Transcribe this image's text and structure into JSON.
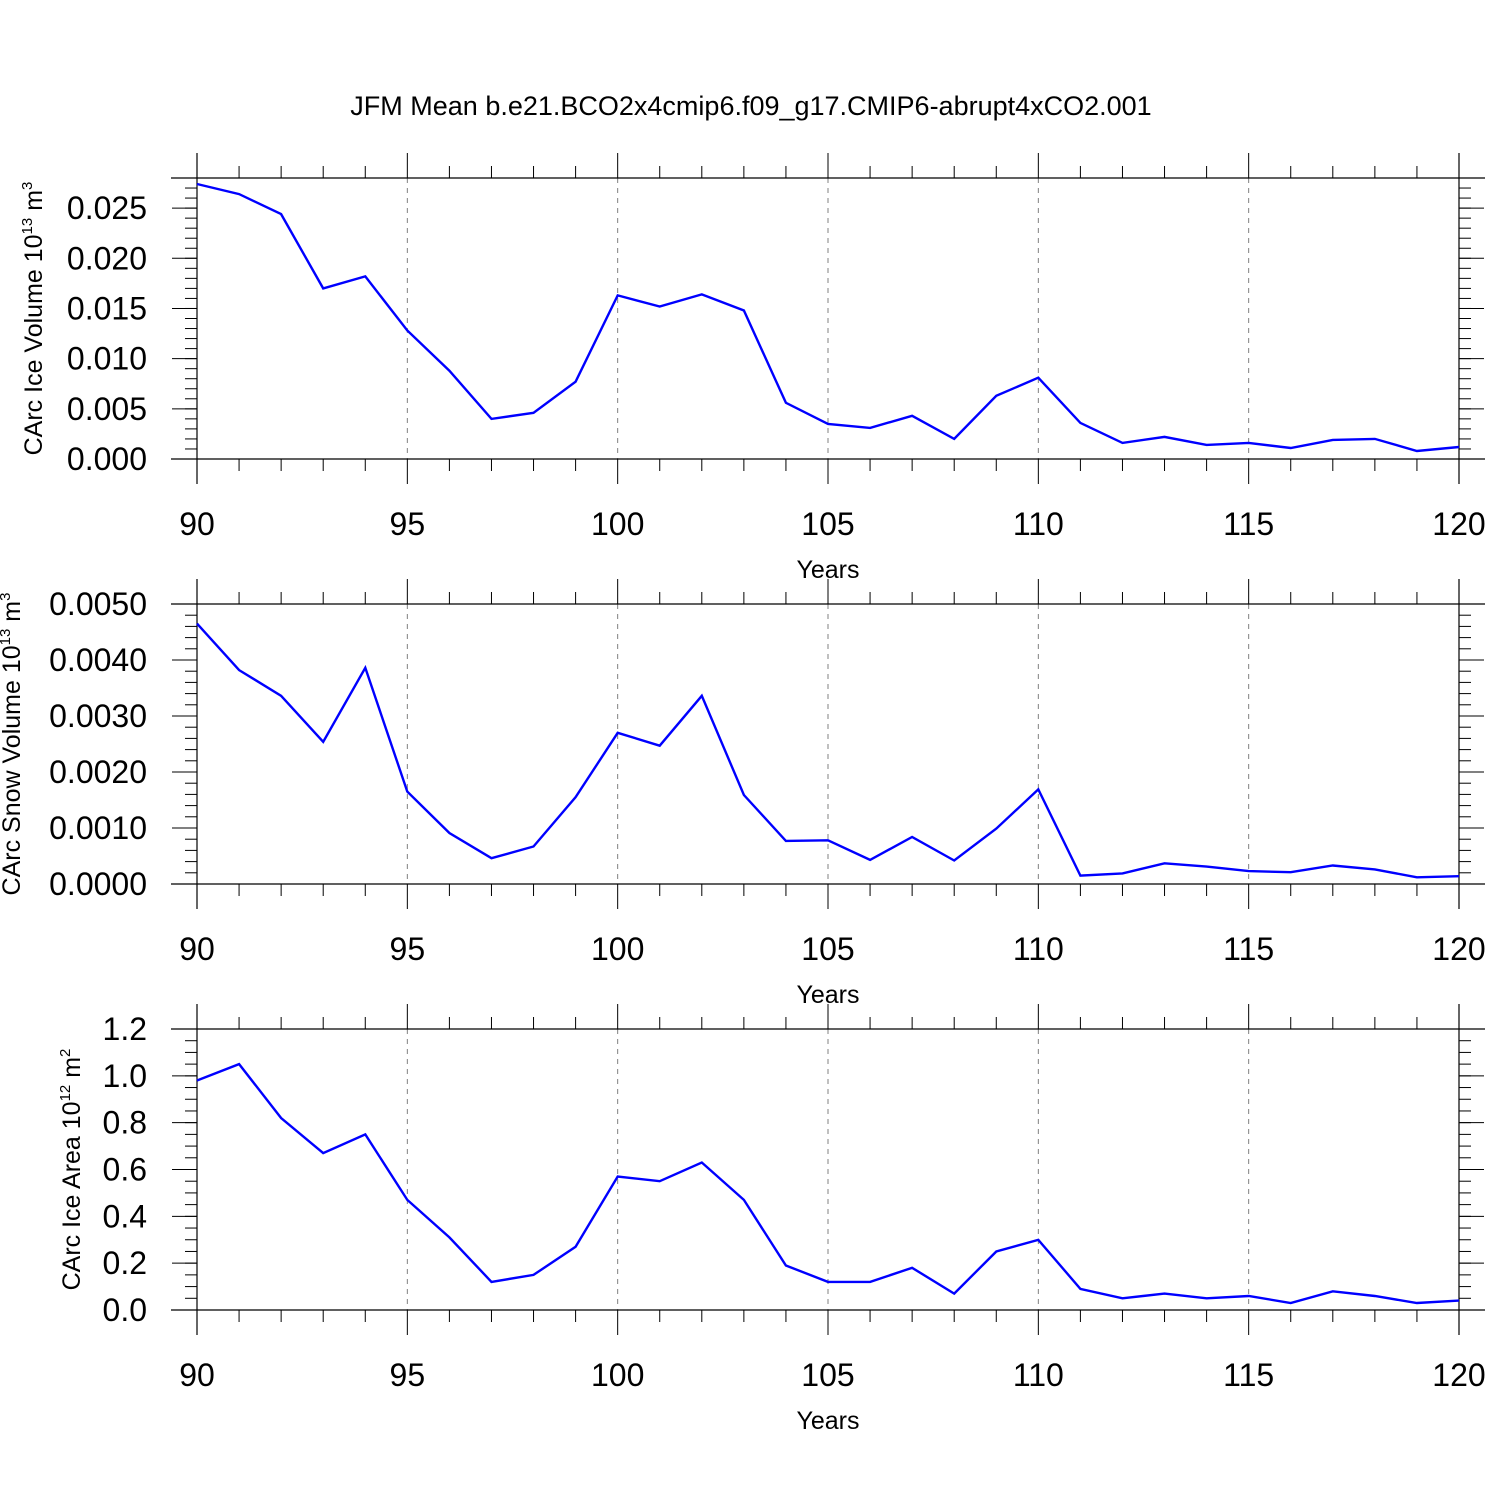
{
  "title": "JFM Mean b.e21.BCO2x4cmip6.f09_g17.CMIP6-abrupt4xCO2.001",
  "colors": {
    "line": "#0000ff",
    "axis": "#000000",
    "grid": "#808080"
  },
  "chart_data": [
    {
      "type": "line",
      "ylabel": {
        "text": "CArc Ice Volume 10",
        "sup1": "13",
        "mid": " m",
        "sup2": "3"
      },
      "xlabel": "Years",
      "xlim": [
        90,
        120
      ],
      "ylim": [
        0.0,
        0.028
      ],
      "yticks": [
        {
          "v": 0.0,
          "label": "0.000"
        },
        {
          "v": 0.005,
          "label": "0.005"
        },
        {
          "v": 0.01,
          "label": "0.010"
        },
        {
          "v": 0.015,
          "label": "0.015"
        },
        {
          "v": 0.02,
          "label": "0.020"
        },
        {
          "v": 0.025,
          "label": "0.025"
        }
      ],
      "yminor": 0.001,
      "xticks": [
        {
          "v": 90,
          "label": "90"
        },
        {
          "v": 95,
          "label": "95"
        },
        {
          "v": 100,
          "label": "100"
        },
        {
          "v": 105,
          "label": "105"
        },
        {
          "v": 110,
          "label": "110"
        },
        {
          "v": 115,
          "label": "115"
        },
        {
          "v": 120,
          "label": "120"
        }
      ],
      "x": [
        90,
        91,
        92,
        93,
        94,
        95,
        96,
        97,
        98,
        99,
        100,
        101,
        102,
        103,
        104,
        105,
        106,
        107,
        108,
        109,
        110,
        111,
        112,
        113,
        114,
        115,
        116,
        117,
        118,
        119,
        120
      ],
      "y": [
        0.0274,
        0.0264,
        0.0244,
        0.017,
        0.0182,
        0.0128,
        0.0088,
        0.004,
        0.0046,
        0.0077,
        0.0163,
        0.0152,
        0.0164,
        0.0148,
        0.0056,
        0.0035,
        0.0031,
        0.0043,
        0.002,
        0.0063,
        0.0081,
        0.0036,
        0.0016,
        0.0022,
        0.0014,
        0.0016,
        0.0011,
        0.0019,
        0.002,
        0.0008,
        0.0012
      ]
    },
    {
      "type": "line",
      "ylabel": {
        "text": "CArc Snow Volume 10",
        "sup1": "13",
        "mid": " m",
        "sup2": "3"
      },
      "xlabel": "Years",
      "xlim": [
        90,
        120
      ],
      "ylim": [
        0.0,
        0.005
      ],
      "yticks": [
        {
          "v": 0.0,
          "label": "0.0000"
        },
        {
          "v": 0.001,
          "label": "0.0010"
        },
        {
          "v": 0.002,
          "label": "0.0020"
        },
        {
          "v": 0.003,
          "label": "0.0030"
        },
        {
          "v": 0.004,
          "label": "0.0040"
        },
        {
          "v": 0.005,
          "label": "0.0050"
        }
      ],
      "yminor": 0.0002,
      "xticks": [
        {
          "v": 90,
          "label": "90"
        },
        {
          "v": 95,
          "label": "95"
        },
        {
          "v": 100,
          "label": "100"
        },
        {
          "v": 105,
          "label": "105"
        },
        {
          "v": 110,
          "label": "110"
        },
        {
          "v": 115,
          "label": "115"
        },
        {
          "v": 120,
          "label": "120"
        }
      ],
      "x": [
        90,
        91,
        92,
        93,
        94,
        95,
        96,
        97,
        98,
        99,
        100,
        101,
        102,
        103,
        104,
        105,
        106,
        107,
        108,
        109,
        110,
        111,
        112,
        113,
        114,
        115,
        116,
        117,
        118,
        119,
        120
      ],
      "y": [
        0.00465,
        0.00382,
        0.00336,
        0.00254,
        0.00386,
        0.00165,
        0.00091,
        0.00046,
        0.00067,
        0.00155,
        0.0027,
        0.00247,
        0.00336,
        0.00159,
        0.00077,
        0.00078,
        0.00043,
        0.00084,
        0.00042,
        0.00099,
        0.00169,
        0.00015,
        0.00019,
        0.00037,
        0.00031,
        0.00023,
        0.00021,
        0.00033,
        0.00026,
        0.00012,
        0.00014
      ]
    },
    {
      "type": "line",
      "ylabel": {
        "text": "CArc Ice Area 10",
        "sup1": "12",
        "mid": " m",
        "sup2": "2"
      },
      "xlabel": "Years",
      "xlim": [
        90,
        120
      ],
      "ylim": [
        0.0,
        1.2
      ],
      "yticks": [
        {
          "v": 0.0,
          "label": "0.0"
        },
        {
          "v": 0.2,
          "label": "0.2"
        },
        {
          "v": 0.4,
          "label": "0.4"
        },
        {
          "v": 0.6,
          "label": "0.6"
        },
        {
          "v": 0.8,
          "label": "0.8"
        },
        {
          "v": 1.0,
          "label": "1.0"
        },
        {
          "v": 1.2,
          "label": "1.2"
        }
      ],
      "yminor": 0.05,
      "xticks": [
        {
          "v": 90,
          "label": "90"
        },
        {
          "v": 95,
          "label": "95"
        },
        {
          "v": 100,
          "label": "100"
        },
        {
          "v": 105,
          "label": "105"
        },
        {
          "v": 110,
          "label": "110"
        },
        {
          "v": 115,
          "label": "115"
        },
        {
          "v": 120,
          "label": "120"
        }
      ],
      "x": [
        90,
        91,
        92,
        93,
        94,
        95,
        96,
        97,
        98,
        99,
        100,
        101,
        102,
        103,
        104,
        105,
        106,
        107,
        108,
        109,
        110,
        111,
        112,
        113,
        114,
        115,
        116,
        117,
        118,
        119,
        120
      ],
      "y": [
        0.98,
        1.05,
        0.82,
        0.67,
        0.75,
        0.47,
        0.31,
        0.12,
        0.15,
        0.27,
        0.57,
        0.55,
        0.63,
        0.47,
        0.19,
        0.12,
        0.12,
        0.18,
        0.07,
        0.25,
        0.3,
        0.09,
        0.05,
        0.07,
        0.05,
        0.06,
        0.03,
        0.08,
        0.06,
        0.03,
        0.04
      ]
    }
  ]
}
